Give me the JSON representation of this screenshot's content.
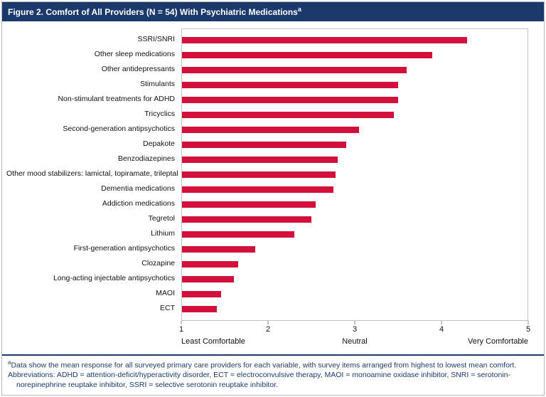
{
  "figure": {
    "title_main": "Figure 2. Comfort of All Providers (N = 54) With Psychiatric Medications",
    "title_sup": "a"
  },
  "chart_data": {
    "type": "bar",
    "orientation": "horizontal",
    "title": "Figure 2. Comfort of All Providers (N = 54) With Psychiatric Medications",
    "categories": [
      "SSRI/SNRI",
      "Other sleep medications",
      "Other antidepressants",
      "Stimulants",
      "Non-stimulant treatments for ADHD",
      "Tricyclics",
      "Second-generation antipsychotics",
      "Depakote",
      "Benzodiazepines",
      "Other mood stabilizers: lamictal, topiramate, trileptal",
      "Dementia medications",
      "Addiction medications",
      "Tegretol",
      "Lithium",
      "First-generation antipsychotics",
      "Clozapine",
      "Long-acting injectable antipsychotics",
      "MAOI",
      "ECT"
    ],
    "values": [
      4.3,
      3.9,
      3.6,
      3.5,
      3.5,
      3.45,
      3.05,
      2.9,
      2.8,
      2.78,
      2.75,
      2.55,
      2.5,
      2.3,
      1.85,
      1.65,
      1.6,
      1.45,
      1.4
    ],
    "xlim": [
      1,
      5
    ],
    "xticks": [
      1,
      2,
      3,
      4,
      5
    ],
    "axis_captions": [
      {
        "pos": 1,
        "label": "Least Comfortable"
      },
      {
        "pos": 3,
        "label": "Neutral"
      },
      {
        "pos": 5,
        "label": "Very Comfortable"
      }
    ],
    "bar_color": "#d3103c",
    "grid": false,
    "legend": false
  },
  "footnote": {
    "sup": "a",
    "line1": "Data show the mean response for all surveyed primary care providers for each variable, with survey items arranged from highest to lowest mean comfort.",
    "line2": "Abbreviations: ADHD = attention-deficit/hyperactivity disorder, ECT = electroconvulsive therapy, MAOI = monoamine oxidase inhibitor, SNRI = serotonin-norepinephrine reuptake inhibitor, SSRI = selective serotonin reuptake inhibitor."
  }
}
